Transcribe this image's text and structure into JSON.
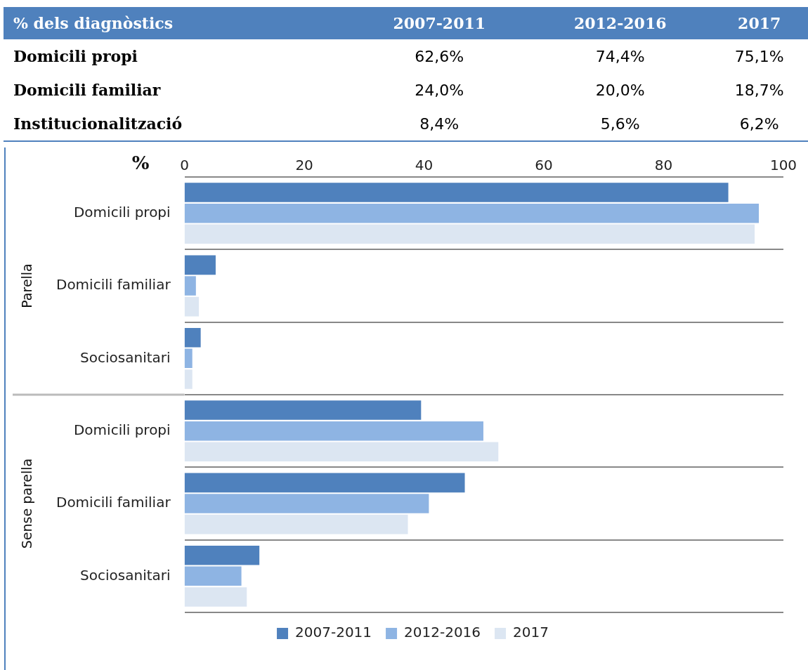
{
  "chart_data": [
    {
      "type": "other",
      "title": "% dels diagnòstics",
      "categories": [
        "2007-2011",
        "2012-2016",
        "2017"
      ],
      "y_categories": [
        "Domicili propi",
        "Domicili familiar",
        "Institucionalització"
      ],
      "cell_labels": [
        [
          "62,6%",
          "74,4%",
          "75,1%"
        ],
        [
          "24,0%",
          "20,0%",
          "18,7%"
        ],
        [
          "8,4%",
          "5,6%",
          "6,2%"
        ]
      ]
    },
    {
      "type": "bar",
      "orientation": "horizontal",
      "xlabel": "%",
      "xlim": [
        0,
        100
      ],
      "xticks": [
        0,
        20,
        40,
        60,
        80,
        100
      ],
      "grid": "y",
      "legend": "bottom",
      "categories": [
        "Domicili propi",
        "Domicili familiar",
        "Sociosanitari",
        "Domicili propi",
        "Domicili familiar",
        "Sociosanitari"
      ],
      "annotations": [
        "Parella",
        "Sense parella"
      ],
      "series": [
        {
          "name": "2007-2011",
          "color": "#4f81bd",
          "values": [
            90.8,
            5.2,
            2.7,
            39.5,
            46.8,
            12.5
          ]
        },
        {
          "name": "2012-2016",
          "color": "#8eb4e3",
          "values": [
            95.9,
            1.9,
            1.3,
            49.9,
            40.8,
            9.5
          ]
        },
        {
          "name": "2017",
          "color": "#dce6f2",
          "values": [
            95.2,
            2.4,
            1.3,
            52.4,
            37.3,
            10.4
          ]
        }
      ]
    }
  ]
}
